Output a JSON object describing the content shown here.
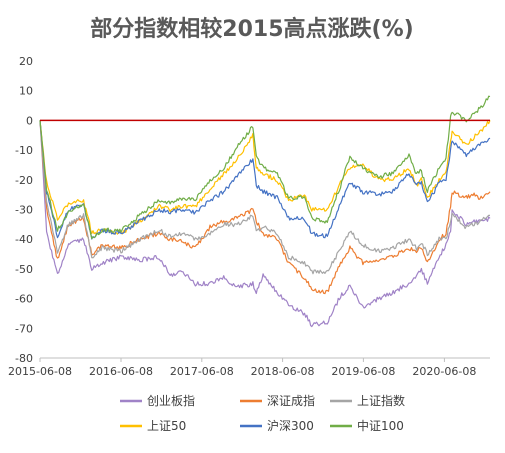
{
  "chart_data": {
    "type": "line",
    "title": "部分指数相较2015高点涨跌(%)",
    "xlabel": "",
    "ylabel": "",
    "ylim": [
      -80,
      20
    ],
    "yticks": [
      20,
      10,
      0,
      -10,
      -20,
      -30,
      -40,
      -50,
      -60,
      -70,
      -80
    ],
    "xlim": [
      "2015-06-08",
      "2020-12-31"
    ],
    "xticks": [
      "2015-06-08",
      "2016-06-08",
      "2017-06-08",
      "2018-06-08",
      "2019-06-08",
      "2020-06-08"
    ],
    "grid": false,
    "zero_line": true,
    "legend_position": "bottom",
    "x": [
      "2015-06-08",
      "2015-07-08",
      "2015-08-26",
      "2015-10-15",
      "2015-12-22",
      "2016-01-28",
      "2016-03-15",
      "2016-06-08",
      "2016-09-01",
      "2016-11-28",
      "2017-01-16",
      "2017-03-15",
      "2017-05-10",
      "2017-07-15",
      "2017-09-15",
      "2017-11-15",
      "2018-01-25",
      "2018-02-09",
      "2018-03-12",
      "2018-05-15",
      "2018-07-05",
      "2018-09-15",
      "2018-10-18",
      "2018-12-27",
      "2019-02-25",
      "2019-04-08",
      "2019-06-06",
      "2019-08-15",
      "2019-10-15",
      "2019-12-31",
      "2020-02-03",
      "2020-02-25",
      "2020-03-23",
      "2020-05-15",
      "2020-06-15",
      "2020-07-06",
      "2020-07-13",
      "2020-09-15",
      "2020-10-15",
      "2020-11-15",
      "2020-12-31"
    ],
    "series": [
      {
        "name": "创业板指",
        "color": "#a083c7",
        "values": [
          0,
          -38,
          -52,
          -42,
          -40,
          -50,
          -48,
          -46,
          -47,
          -46,
          -52,
          -51,
          -55,
          -55,
          -53,
          -56,
          -55,
          -58,
          -52,
          -58,
          -62,
          -65,
          -69,
          -68,
          -59,
          -56,
          -63,
          -60,
          -58,
          -55,
          -52,
          -50,
          -55,
          -46,
          -42,
          -37,
          -30,
          -35,
          -34,
          -34,
          -33
        ]
      },
      {
        "name": "深证成指",
        "color": "#ed7d31",
        "values": [
          0,
          -30,
          -47,
          -35,
          -33,
          -45,
          -42,
          -43,
          -40,
          -38,
          -40,
          -41,
          -43,
          -36,
          -34,
          -33,
          -30,
          -34,
          -38,
          -40,
          -48,
          -53,
          -57,
          -58,
          -48,
          -43,
          -48,
          -47,
          -46,
          -43,
          -44,
          -43,
          -48,
          -40,
          -38,
          -29,
          -24,
          -26,
          -25,
          -26,
          -24
        ]
      },
      {
        "name": "上证指数",
        "color": "#a5a5a5",
        "values": [
          0,
          -28,
          -44,
          -35,
          -32,
          -46,
          -43,
          -44,
          -40,
          -37,
          -39,
          -38,
          -40,
          -38,
          -35,
          -35,
          -32,
          -37,
          -36,
          -38,
          -46,
          -48,
          -51,
          -51,
          -43,
          -37,
          -42,
          -44,
          -43,
          -40,
          -43,
          -41,
          -45,
          -40,
          -40,
          -34,
          -32,
          -36,
          -35,
          -34,
          -32
        ]
      },
      {
        "name": "上证50",
        "color": "#ffc000",
        "values": [
          0,
          -21,
          -33,
          -28,
          -27,
          -38,
          -37,
          -38,
          -34,
          -29,
          -30,
          -29,
          -29,
          -23,
          -18,
          -13,
          -5,
          -16,
          -18,
          -20,
          -27,
          -25,
          -30,
          -30,
          -21,
          -16,
          -15,
          -20,
          -20,
          -16,
          -22,
          -20,
          -26,
          -20,
          -18,
          -7,
          -4,
          -8,
          -6,
          -4,
          0
        ]
      },
      {
        "name": "沪深300",
        "color": "#4472c4",
        "values": [
          0,
          -24,
          -39,
          -30,
          -28,
          -40,
          -37,
          -38,
          -34,
          -30,
          -31,
          -30,
          -31,
          -27,
          -24,
          -19,
          -13,
          -22,
          -24,
          -26,
          -33,
          -33,
          -38,
          -39,
          -28,
          -21,
          -24,
          -25,
          -24,
          -18,
          -22,
          -21,
          -28,
          -21,
          -20,
          -10,
          -7,
          -12,
          -10,
          -8,
          -6
        ]
      },
      {
        "name": "中证100",
        "color": "#70ad47",
        "values": [
          0,
          -23,
          -37,
          -31,
          -28,
          -40,
          -37,
          -37,
          -32,
          -27,
          -28,
          -26,
          -27,
          -20,
          -16,
          -9,
          -2,
          -12,
          -16,
          -18,
          -26,
          -26,
          -33,
          -34,
          -22,
          -12,
          -16,
          -19,
          -18,
          -12,
          -18,
          -17,
          -24,
          -16,
          -13,
          1,
          3,
          0,
          2,
          4,
          8
        ]
      }
    ]
  }
}
